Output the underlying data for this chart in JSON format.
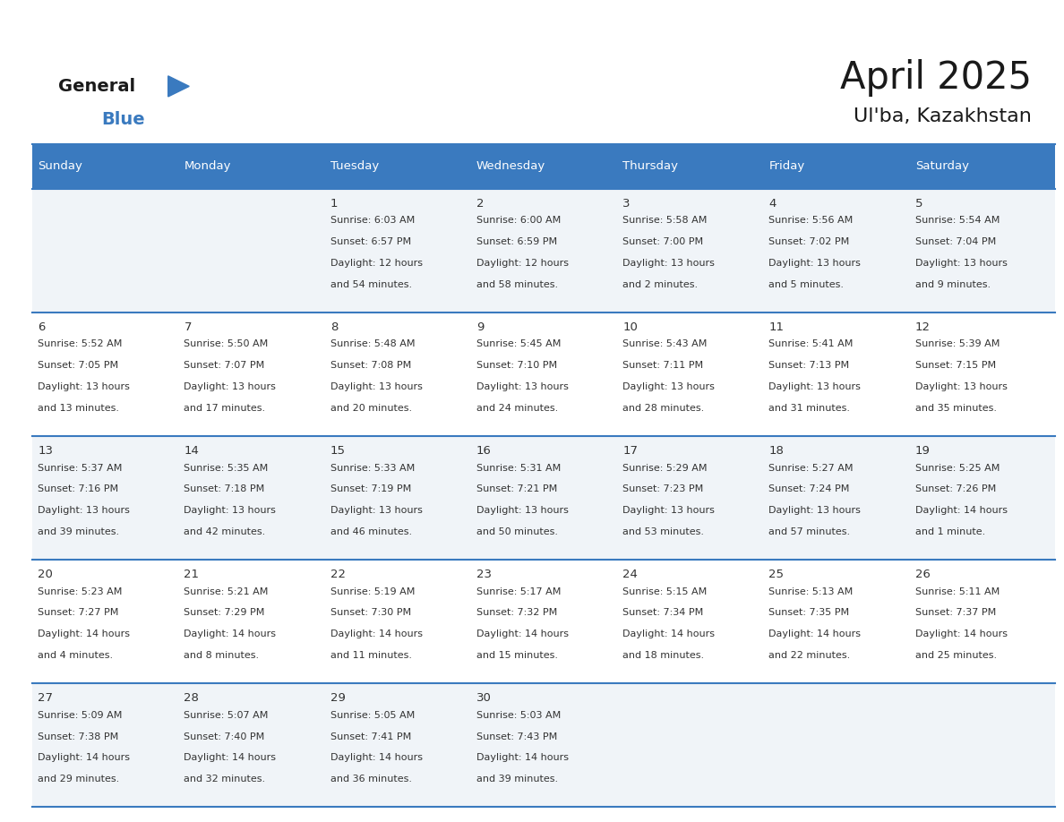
{
  "title": "April 2025",
  "subtitle": "Ul'ba, Kazakhstan",
  "header_color": "#3a7abf",
  "header_text_color": "#ffffff",
  "border_color": "#3a7abf",
  "days_of_week": [
    "Sunday",
    "Monday",
    "Tuesday",
    "Wednesday",
    "Thursday",
    "Friday",
    "Saturday"
  ],
  "title_color": "#1a1a1a",
  "subtitle_color": "#1a1a1a",
  "text_color": "#333333",
  "row_colors": [
    "#f0f4f8",
    "#ffffff",
    "#f0f4f8",
    "#ffffff",
    "#f0f4f8"
  ],
  "calendar_data": [
    [
      {
        "day": "",
        "lines": []
      },
      {
        "day": "",
        "lines": []
      },
      {
        "day": "1",
        "lines": [
          "Sunrise: 6:03 AM",
          "Sunset: 6:57 PM",
          "Daylight: 12 hours",
          "and 54 minutes."
        ]
      },
      {
        "day": "2",
        "lines": [
          "Sunrise: 6:00 AM",
          "Sunset: 6:59 PM",
          "Daylight: 12 hours",
          "and 58 minutes."
        ]
      },
      {
        "day": "3",
        "lines": [
          "Sunrise: 5:58 AM",
          "Sunset: 7:00 PM",
          "Daylight: 13 hours",
          "and 2 minutes."
        ]
      },
      {
        "day": "4",
        "lines": [
          "Sunrise: 5:56 AM",
          "Sunset: 7:02 PM",
          "Daylight: 13 hours",
          "and 5 minutes."
        ]
      },
      {
        "day": "5",
        "lines": [
          "Sunrise: 5:54 AM",
          "Sunset: 7:04 PM",
          "Daylight: 13 hours",
          "and 9 minutes."
        ]
      }
    ],
    [
      {
        "day": "6",
        "lines": [
          "Sunrise: 5:52 AM",
          "Sunset: 7:05 PM",
          "Daylight: 13 hours",
          "and 13 minutes."
        ]
      },
      {
        "day": "7",
        "lines": [
          "Sunrise: 5:50 AM",
          "Sunset: 7:07 PM",
          "Daylight: 13 hours",
          "and 17 minutes."
        ]
      },
      {
        "day": "8",
        "lines": [
          "Sunrise: 5:48 AM",
          "Sunset: 7:08 PM",
          "Daylight: 13 hours",
          "and 20 minutes."
        ]
      },
      {
        "day": "9",
        "lines": [
          "Sunrise: 5:45 AM",
          "Sunset: 7:10 PM",
          "Daylight: 13 hours",
          "and 24 minutes."
        ]
      },
      {
        "day": "10",
        "lines": [
          "Sunrise: 5:43 AM",
          "Sunset: 7:11 PM",
          "Daylight: 13 hours",
          "and 28 minutes."
        ]
      },
      {
        "day": "11",
        "lines": [
          "Sunrise: 5:41 AM",
          "Sunset: 7:13 PM",
          "Daylight: 13 hours",
          "and 31 minutes."
        ]
      },
      {
        "day": "12",
        "lines": [
          "Sunrise: 5:39 AM",
          "Sunset: 7:15 PM",
          "Daylight: 13 hours",
          "and 35 minutes."
        ]
      }
    ],
    [
      {
        "day": "13",
        "lines": [
          "Sunrise: 5:37 AM",
          "Sunset: 7:16 PM",
          "Daylight: 13 hours",
          "and 39 minutes."
        ]
      },
      {
        "day": "14",
        "lines": [
          "Sunrise: 5:35 AM",
          "Sunset: 7:18 PM",
          "Daylight: 13 hours",
          "and 42 minutes."
        ]
      },
      {
        "day": "15",
        "lines": [
          "Sunrise: 5:33 AM",
          "Sunset: 7:19 PM",
          "Daylight: 13 hours",
          "and 46 minutes."
        ]
      },
      {
        "day": "16",
        "lines": [
          "Sunrise: 5:31 AM",
          "Sunset: 7:21 PM",
          "Daylight: 13 hours",
          "and 50 minutes."
        ]
      },
      {
        "day": "17",
        "lines": [
          "Sunrise: 5:29 AM",
          "Sunset: 7:23 PM",
          "Daylight: 13 hours",
          "and 53 minutes."
        ]
      },
      {
        "day": "18",
        "lines": [
          "Sunrise: 5:27 AM",
          "Sunset: 7:24 PM",
          "Daylight: 13 hours",
          "and 57 minutes."
        ]
      },
      {
        "day": "19",
        "lines": [
          "Sunrise: 5:25 AM",
          "Sunset: 7:26 PM",
          "Daylight: 14 hours",
          "and 1 minute."
        ]
      }
    ],
    [
      {
        "day": "20",
        "lines": [
          "Sunrise: 5:23 AM",
          "Sunset: 7:27 PM",
          "Daylight: 14 hours",
          "and 4 minutes."
        ]
      },
      {
        "day": "21",
        "lines": [
          "Sunrise: 5:21 AM",
          "Sunset: 7:29 PM",
          "Daylight: 14 hours",
          "and 8 minutes."
        ]
      },
      {
        "day": "22",
        "lines": [
          "Sunrise: 5:19 AM",
          "Sunset: 7:30 PM",
          "Daylight: 14 hours",
          "and 11 minutes."
        ]
      },
      {
        "day": "23",
        "lines": [
          "Sunrise: 5:17 AM",
          "Sunset: 7:32 PM",
          "Daylight: 14 hours",
          "and 15 minutes."
        ]
      },
      {
        "day": "24",
        "lines": [
          "Sunrise: 5:15 AM",
          "Sunset: 7:34 PM",
          "Daylight: 14 hours",
          "and 18 minutes."
        ]
      },
      {
        "day": "25",
        "lines": [
          "Sunrise: 5:13 AM",
          "Sunset: 7:35 PM",
          "Daylight: 14 hours",
          "and 22 minutes."
        ]
      },
      {
        "day": "26",
        "lines": [
          "Sunrise: 5:11 AM",
          "Sunset: 7:37 PM",
          "Daylight: 14 hours",
          "and 25 minutes."
        ]
      }
    ],
    [
      {
        "day": "27",
        "lines": [
          "Sunrise: 5:09 AM",
          "Sunset: 7:38 PM",
          "Daylight: 14 hours",
          "and 29 minutes."
        ]
      },
      {
        "day": "28",
        "lines": [
          "Sunrise: 5:07 AM",
          "Sunset: 7:40 PM",
          "Daylight: 14 hours",
          "and 32 minutes."
        ]
      },
      {
        "day": "29",
        "lines": [
          "Sunrise: 5:05 AM",
          "Sunset: 7:41 PM",
          "Daylight: 14 hours",
          "and 36 minutes."
        ]
      },
      {
        "day": "30",
        "lines": [
          "Sunrise: 5:03 AM",
          "Sunset: 7:43 PM",
          "Daylight: 14 hours",
          "and 39 minutes."
        ]
      },
      {
        "day": "",
        "lines": []
      },
      {
        "day": "",
        "lines": []
      },
      {
        "day": "",
        "lines": []
      }
    ]
  ]
}
